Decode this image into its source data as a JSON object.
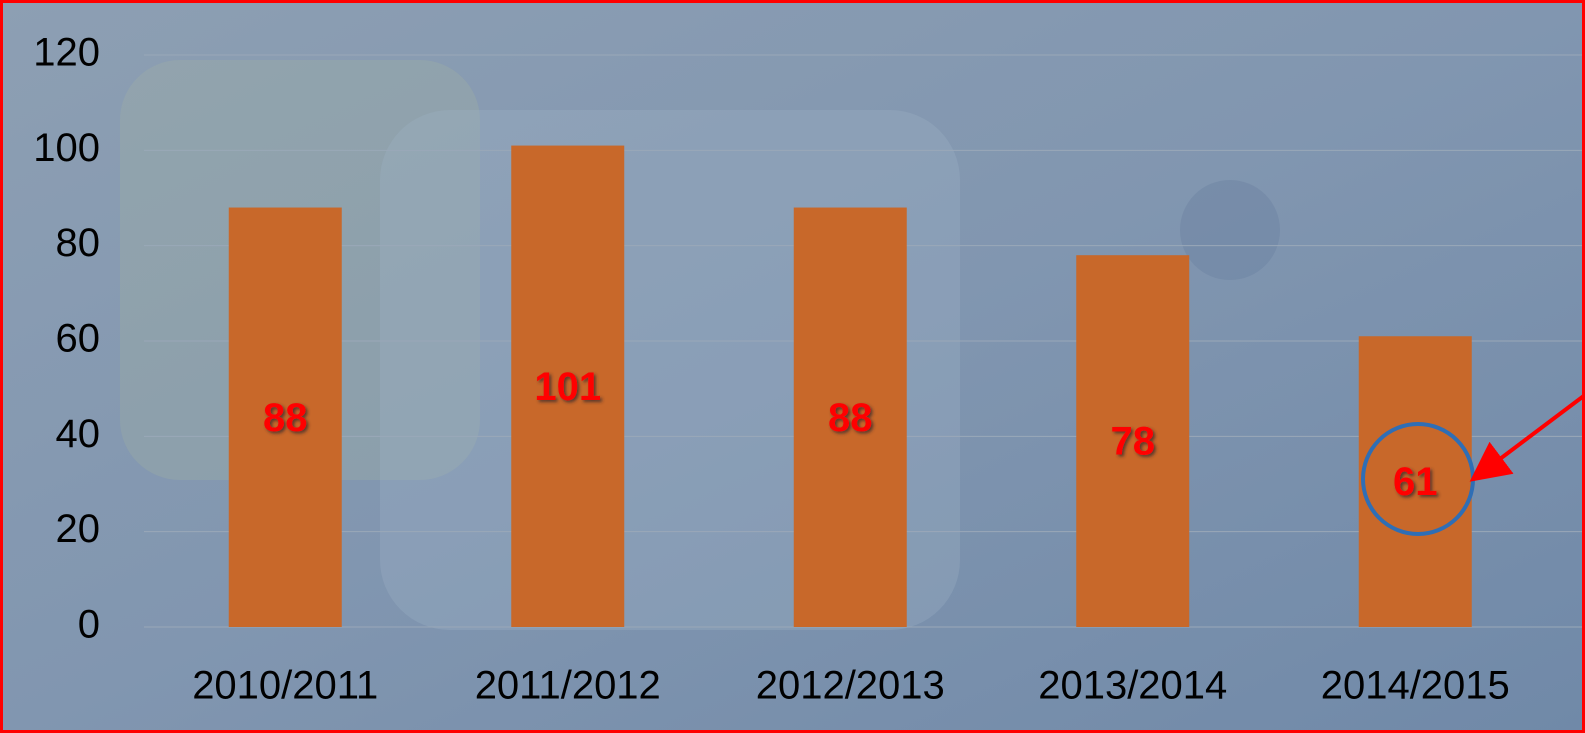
{
  "chart_data": {
    "type": "bar",
    "categories": [
      "2010/2011",
      "2011/2012",
      "2012/2013",
      "2013/2014",
      "2014/2015"
    ],
    "values": [
      88,
      101,
      88,
      78,
      61
    ],
    "color": "#c8682a",
    "ylim": [
      0,
      120
    ],
    "yticks": [
      0,
      20,
      40,
      60,
      80,
      100,
      120
    ],
    "grid": true,
    "data_labels": true
  }
}
